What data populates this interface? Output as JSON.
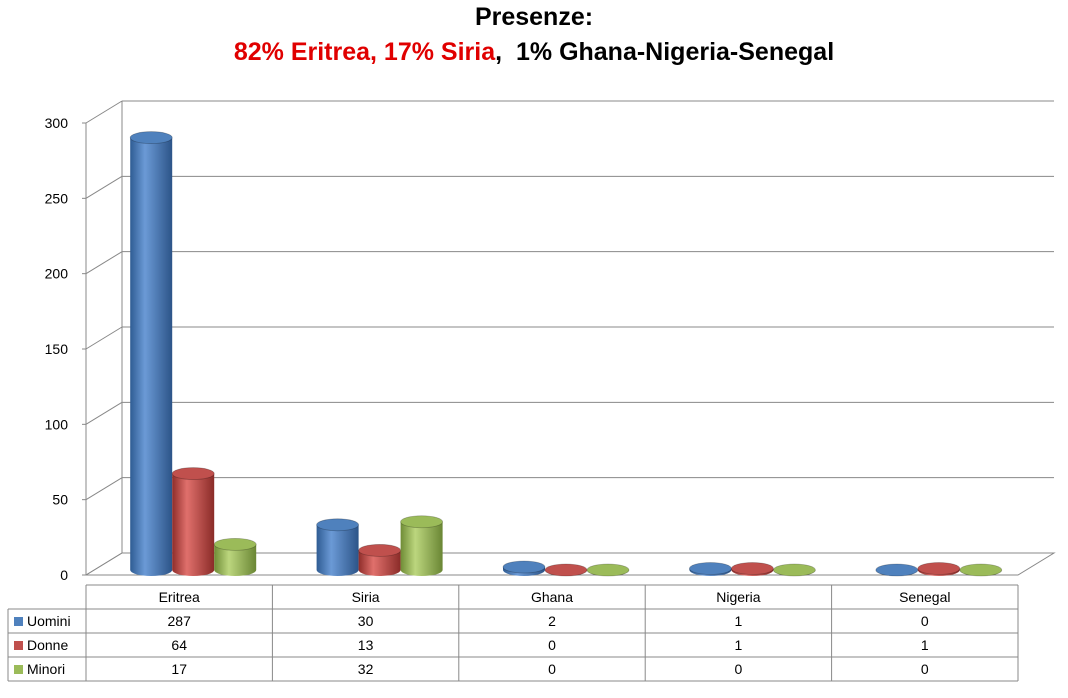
{
  "title": {
    "line1": "Presenze:",
    "line2_red": "82% Eritrea,  17% Siria",
    "line2_sep": ",",
    "line2_black": "1% Ghana-Nigeria-Senegal"
  },
  "colors": {
    "red_text": "#e00000",
    "Uomini": "#4f81bd",
    "Donne": "#c0504d",
    "Minori": "#9bbb59"
  },
  "chart_data": {
    "type": "bar",
    "style": "3d-cylinder-clustered",
    "categories": [
      "Eritrea",
      "Siria",
      "Ghana",
      "Nigeria",
      "Senegal"
    ],
    "series": [
      {
        "name": "Uomini",
        "values": [
          287,
          30,
          2,
          1,
          0
        ]
      },
      {
        "name": "Donne",
        "values": [
          64,
          13,
          0,
          1,
          1
        ]
      },
      {
        "name": "Minori",
        "values": [
          17,
          32,
          0,
          0,
          0
        ]
      }
    ],
    "ylim": [
      0,
      300
    ],
    "yticks": [
      0,
      50,
      100,
      150,
      200,
      250,
      300
    ],
    "grid": true,
    "legend": "data-table-below"
  }
}
